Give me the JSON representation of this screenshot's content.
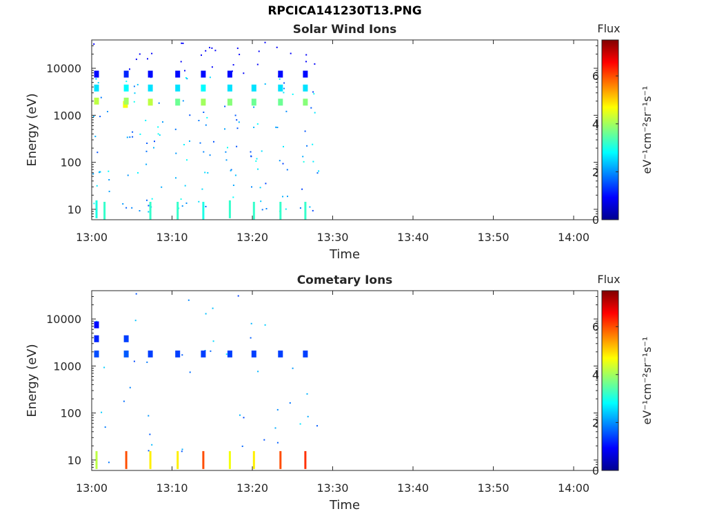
{
  "figure_title": "RPCICA141230T13.PNG",
  "colors": {
    "axis": "#262626",
    "colormap": [
      "#00008f",
      "#0000ff",
      "#0080ff",
      "#00ffff",
      "#80ff80",
      "#ffff00",
      "#ff8000",
      "#ff0000",
      "#800000"
    ]
  },
  "chart_data": [
    {
      "type": "heatmap",
      "title": "Solar Wind Ions",
      "xlabel": "Time",
      "ylabel": "Energy (eV)",
      "y_scale": "log",
      "xlim": [
        "13:00",
        "14:03"
      ],
      "ylim": [
        6,
        40000
      ],
      "x_ticks": [
        "13:00",
        "13:10",
        "13:20",
        "13:30",
        "13:40",
        "13:50",
        "14:00"
      ],
      "y_ticks": [
        "10",
        "100",
        "1000",
        "10000"
      ],
      "colorbar": {
        "label": "Flux",
        "unit_label": "eV⁻¹cm⁻²sr⁻¹s⁻¹",
        "ticks": [
          "0",
          "2",
          "4",
          "6"
        ],
        "range": [
          0,
          7.5
        ]
      },
      "scan_times": [
        "13:00.5",
        "13:04.3",
        "13:07.3",
        "13:10.7",
        "13:13.9",
        "13:17.2",
        "13:20.2",
        "13:23.5",
        "13:26.6"
      ],
      "data_end": "13:28.2",
      "points": [
        {
          "t": "13:00.6",
          "e": 2000,
          "flux": 4.2
        },
        {
          "t": "13:00.6",
          "e": 3800,
          "flux": 2.6
        },
        {
          "t": "13:00.6",
          "e": 7500,
          "flux": 1.0
        },
        {
          "t": "13:04.2",
          "e": 1700,
          "flux": 4.6
        },
        {
          "t": "13:04.3",
          "e": 2000,
          "flux": 4.0
        },
        {
          "t": "13:04.3",
          "e": 3800,
          "flux": 2.8
        },
        {
          "t": "13:04.3",
          "e": 7500,
          "flux": 1.2
        },
        {
          "t": "13:07.3",
          "e": 1900,
          "flux": 4.2
        },
        {
          "t": "13:07.3",
          "e": 3800,
          "flux": 2.6
        },
        {
          "t": "13:07.3",
          "e": 7500,
          "flux": 1.0
        },
        {
          "t": "13:10.7",
          "e": 1900,
          "flux": 3.6
        },
        {
          "t": "13:10.7",
          "e": 3800,
          "flux": 2.6
        },
        {
          "t": "13:10.7",
          "e": 7500,
          "flux": 1.0
        },
        {
          "t": "13:13.9",
          "e": 1900,
          "flux": 4.0
        },
        {
          "t": "13:13.9",
          "e": 3800,
          "flux": 2.8
        },
        {
          "t": "13:13.9",
          "e": 7500,
          "flux": 1.0
        },
        {
          "t": "13:17.2",
          "e": 1900,
          "flux": 3.8
        },
        {
          "t": "13:17.2",
          "e": 3800,
          "flux": 2.6
        },
        {
          "t": "13:17.2",
          "e": 7500,
          "flux": 1.0
        },
        {
          "t": "13:20.2",
          "e": 1900,
          "flux": 3.6
        },
        {
          "t": "13:20.2",
          "e": 3800,
          "flux": 2.6
        },
        {
          "t": "13:23.5",
          "e": 1900,
          "flux": 3.6
        },
        {
          "t": "13:23.5",
          "e": 3800,
          "flux": 2.6
        },
        {
          "t": "13:23.5",
          "e": 7500,
          "flux": 1.0
        },
        {
          "t": "13:26.6",
          "e": 1900,
          "flux": 3.8
        },
        {
          "t": "13:26.6",
          "e": 3800,
          "flux": 2.6
        },
        {
          "t": "13:26.6",
          "e": 7500,
          "flux": 1.0
        },
        {
          "t": "13:00.6",
          "e": 10,
          "flux": 3.0
        },
        {
          "t": "13:01.6",
          "e": 8,
          "flux": 3.2
        },
        {
          "t": "13:07.3",
          "e": 7,
          "flux": 3.2
        },
        {
          "t": "13:10.7",
          "e": 8,
          "flux": 3.2
        },
        {
          "t": "13:13.9",
          "e": 8,
          "flux": 3.0
        },
        {
          "t": "13:17.2",
          "e": 10,
          "flux": 3.2
        },
        {
          "t": "13:20.2",
          "e": 8,
          "flux": 3.2
        },
        {
          "t": "13:23.5",
          "e": 8,
          "flux": 3.2
        },
        {
          "t": "13:26.6",
          "e": 8,
          "flux": 3.2
        }
      ]
    },
    {
      "type": "heatmap",
      "title": "Cometary Ions",
      "xlabel": "Time",
      "ylabel": "Energy (eV)",
      "y_scale": "log",
      "xlim": [
        "13:00",
        "14:03"
      ],
      "ylim": [
        6,
        40000
      ],
      "x_ticks": [
        "13:00",
        "13:10",
        "13:20",
        "13:30",
        "13:40",
        "13:50",
        "14:00"
      ],
      "y_ticks": [
        "10",
        "100",
        "1000",
        "10000"
      ],
      "colorbar": {
        "label": "Flux",
        "unit_label": "eV⁻¹cm⁻²sr⁻¹s⁻¹",
        "ticks": [
          "0",
          "2",
          "4",
          "6"
        ],
        "range": [
          0,
          7.5
        ]
      },
      "scan_times": [
        "13:00.5",
        "13:04.3",
        "13:07.3",
        "13:10.7",
        "13:13.9",
        "13:17.2",
        "13:20.2",
        "13:23.5",
        "13:26.6"
      ],
      "data_end": "13:28.2",
      "points": [
        {
          "t": "13:00.6",
          "e": 1800,
          "flux": 1.5
        },
        {
          "t": "13:00.6",
          "e": 3800,
          "flux": 1.2
        },
        {
          "t": "13:00.6",
          "e": 7500,
          "flux": 1.0
        },
        {
          "t": "13:04.3",
          "e": 1800,
          "flux": 1.6
        },
        {
          "t": "13:04.3",
          "e": 3800,
          "flux": 1.4
        },
        {
          "t": "13:07.3",
          "e": 1800,
          "flux": 1.4
        },
        {
          "t": "13:10.7",
          "e": 1800,
          "flux": 1.4
        },
        {
          "t": "13:13.9",
          "e": 1800,
          "flux": 1.4
        },
        {
          "t": "13:17.2",
          "e": 1800,
          "flux": 1.4
        },
        {
          "t": "13:20.2",
          "e": 1800,
          "flux": 1.4
        },
        {
          "t": "13:23.5",
          "e": 1800,
          "flux": 1.4
        },
        {
          "t": "13:26.6",
          "e": 1800,
          "flux": 1.4
        },
        {
          "t": "13:00.6",
          "e": 10,
          "flux": 4.2
        },
        {
          "t": "13:04.3",
          "e": 10,
          "flux": 6.0
        },
        {
          "t": "13:07.3",
          "e": 10,
          "flux": 4.8
        },
        {
          "t": "13:10.7",
          "e": 10,
          "flux": 4.8
        },
        {
          "t": "13:13.9",
          "e": 10,
          "flux": 6.0
        },
        {
          "t": "13:17.2",
          "e": 10,
          "flux": 4.6
        },
        {
          "t": "13:20.2",
          "e": 10,
          "flux": 4.8
        },
        {
          "t": "13:23.5",
          "e": 10,
          "flux": 6.0
        },
        {
          "t": "13:26.6",
          "e": 10,
          "flux": 6.2
        }
      ]
    }
  ]
}
